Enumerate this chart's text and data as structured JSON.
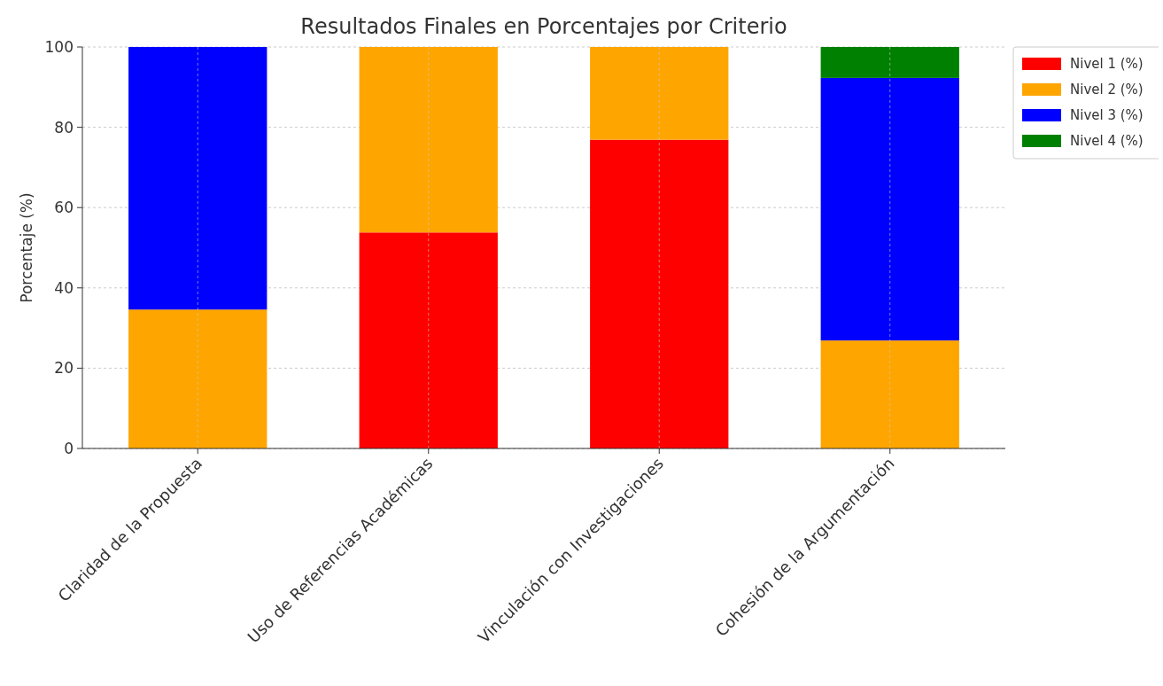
{
  "chart_data": {
    "type": "bar",
    "title": "Resultados Finales en Porcentajes por Criterio",
    "ylabel": "Porcentaje (%)",
    "categories": [
      "Claridad de la Propuesta",
      "Uso de Referencias Académicas",
      "Vinculación con Investigaciones",
      "Cohesión de la Argumentación"
    ],
    "stacked": true,
    "series": [
      {
        "name": "Nivel 1 (%)",
        "color": "#ff0000",
        "values": [
          0,
          53.8,
          76.9,
          0
        ]
      },
      {
        "name": "Nivel 2 (%)",
        "color": "#ffa500",
        "values": [
          34.6,
          46.2,
          23.1,
          26.9
        ]
      },
      {
        "name": "Nivel 3 (%)",
        "color": "#0000ff",
        "values": [
          65.4,
          0,
          0,
          65.4
        ]
      },
      {
        "name": "Nivel 4 (%)",
        "color": "#008000",
        "values": [
          0,
          0,
          0,
          7.7
        ]
      }
    ],
    "ylim": [
      0,
      100
    ],
    "yticks": [
      0,
      20,
      40,
      60,
      80,
      100
    ],
    "grid": true,
    "legend": "top right"
  }
}
